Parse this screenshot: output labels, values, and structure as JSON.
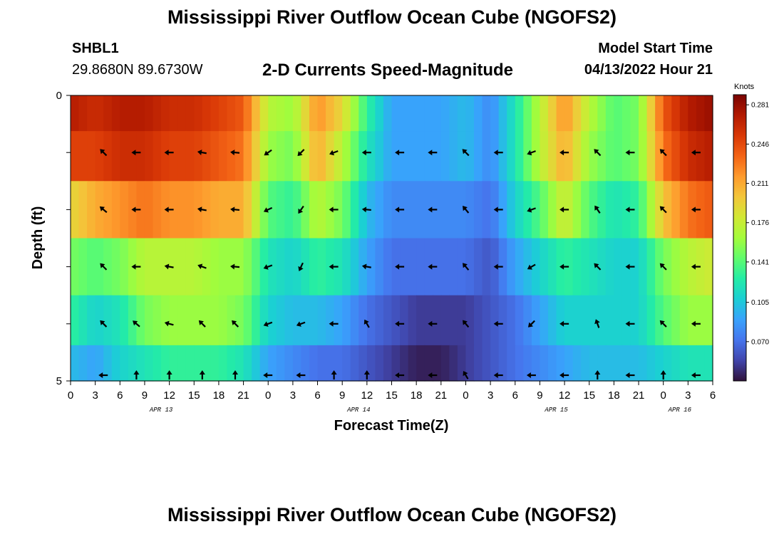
{
  "title": "Mississippi River Outflow Ocean Cube (NGOFS2)",
  "station": {
    "name": "SHBL1",
    "coords": "29.8680N  89.6730W"
  },
  "subtitle": "2-D Currents Speed-Magnitude",
  "model_start": {
    "label": "Model Start Time",
    "value": "04/13/2022 Hour 21"
  },
  "colorbar": {
    "unit": "Knots",
    "ticks": [
      "0.281",
      "0.246",
      "0.211",
      "0.176",
      "0.141",
      "0.105",
      "0.070"
    ],
    "tick_values": [
      0.281,
      0.246,
      0.211,
      0.176,
      0.141,
      0.105,
      0.07
    ],
    "range": [
      0.035,
      0.29
    ],
    "colormap": [
      "#30123b",
      "#4145ab",
      "#4675ed",
      "#39a2fc",
      "#1bcfd4",
      "#24eca6",
      "#61fc6c",
      "#a4fc3b",
      "#d1e834",
      "#f3c63a",
      "#fe9b2d",
      "#f36315",
      "#d93806",
      "#b11901",
      "#7a0402"
    ]
  },
  "chart_data": {
    "type": "heatmap",
    "xlabel": "Forecast Time(Z)",
    "ylabel": "Depth (ft)",
    "x_tick_labels": [
      "0",
      "3",
      "6",
      "9",
      "12",
      "15",
      "18",
      "21",
      "0",
      "3",
      "6",
      "9",
      "12",
      "15",
      "18",
      "21",
      "0",
      "3",
      "6",
      "9",
      "12",
      "15",
      "18",
      "21",
      "0",
      "3",
      "6"
    ],
    "day_labels": [
      {
        "text": "APR 13",
        "hour": 11
      },
      {
        "text": "APR 14",
        "hour": 35
      },
      {
        "text": "APR 15",
        "hour": 59
      },
      {
        "text": "APR 16",
        "hour": 74
      }
    ],
    "xlim": [
      0,
      78
    ],
    "y_tick_labels": [
      "0",
      "5"
    ],
    "ylim": [
      0,
      5
    ],
    "depth_bins": [
      0.25,
      1,
      2,
      3,
      4,
      4.75
    ],
    "speed_profile_hours": [
      0,
      3,
      6,
      9,
      12,
      15,
      18,
      21,
      24,
      27,
      30,
      33,
      36,
      39,
      42,
      45,
      48,
      51,
      54,
      57,
      60,
      63,
      66,
      69,
      72,
      75,
      78
    ],
    "speed_knots": [
      [
        0.27,
        0.26,
        0.27,
        0.27,
        0.26,
        0.26,
        0.25,
        0.24,
        0.17,
        0.16,
        0.22,
        0.19,
        0.13,
        0.09,
        0.09,
        0.09,
        0.1,
        0.08,
        0.12,
        0.17,
        0.22,
        0.17,
        0.14,
        0.15,
        0.24,
        0.27,
        0.28
      ],
      [
        0.25,
        0.25,
        0.26,
        0.26,
        0.25,
        0.25,
        0.24,
        0.23,
        0.16,
        0.15,
        0.21,
        0.17,
        0.12,
        0.09,
        0.09,
        0.09,
        0.1,
        0.08,
        0.12,
        0.17,
        0.21,
        0.16,
        0.14,
        0.15,
        0.23,
        0.26,
        0.27
      ],
      [
        0.19,
        0.21,
        0.22,
        0.23,
        0.22,
        0.22,
        0.21,
        0.21,
        0.14,
        0.13,
        0.17,
        0.15,
        0.1,
        0.08,
        0.08,
        0.08,
        0.08,
        0.07,
        0.11,
        0.14,
        0.18,
        0.14,
        0.12,
        0.13,
        0.2,
        0.23,
        0.24
      ],
      [
        0.15,
        0.14,
        0.15,
        0.17,
        0.17,
        0.17,
        0.16,
        0.16,
        0.12,
        0.11,
        0.13,
        0.12,
        0.09,
        0.07,
        0.07,
        0.07,
        0.07,
        0.06,
        0.09,
        0.11,
        0.13,
        0.12,
        0.11,
        0.11,
        0.15,
        0.17,
        0.18
      ],
      [
        0.13,
        0.11,
        0.12,
        0.15,
        0.16,
        0.16,
        0.16,
        0.15,
        0.11,
        0.1,
        0.1,
        0.09,
        0.07,
        0.06,
        0.05,
        0.05,
        0.05,
        0.06,
        0.07,
        0.09,
        0.11,
        0.11,
        0.11,
        0.11,
        0.14,
        0.16,
        0.16
      ],
      [
        0.1,
        0.09,
        0.11,
        0.12,
        0.13,
        0.13,
        0.13,
        0.12,
        0.09,
        0.08,
        0.07,
        0.07,
        0.06,
        0.05,
        0.04,
        0.04,
        0.05,
        0.06,
        0.07,
        0.08,
        0.09,
        0.1,
        0.1,
        0.1,
        0.11,
        0.12,
        0.12
      ]
    ],
    "arrow_hours": [
      4,
      8,
      12,
      16,
      20,
      24,
      28,
      32,
      36,
      40,
      44,
      48,
      52,
      56,
      60,
      64,
      68,
      72,
      76
    ],
    "arrow_depths": [
      1,
      2,
      3,
      4,
      4.9
    ],
    "arrow_directions_deg": [
      [
        135,
        180,
        180,
        170,
        175,
        215,
        225,
        200,
        180,
        180,
        180,
        135,
        180,
        200,
        180,
        135,
        180,
        135,
        180
      ],
      [
        140,
        180,
        180,
        170,
        175,
        205,
        235,
        180,
        175,
        180,
        180,
        130,
        180,
        200,
        180,
        125,
        180,
        135,
        180
      ],
      [
        135,
        180,
        170,
        160,
        175,
        200,
        245,
        180,
        170,
        180,
        180,
        130,
        180,
        210,
        180,
        135,
        180,
        135,
        180
      ],
      [
        135,
        140,
        165,
        135,
        135,
        200,
        200,
        180,
        120,
        180,
        180,
        130,
        180,
        225,
        180,
        110,
        180,
        135,
        180
      ],
      [
        180,
        90,
        90,
        90,
        90,
        180,
        180,
        90,
        90,
        180,
        180,
        120,
        180,
        180,
        180,
        90,
        180,
        90,
        180
      ]
    ]
  }
}
